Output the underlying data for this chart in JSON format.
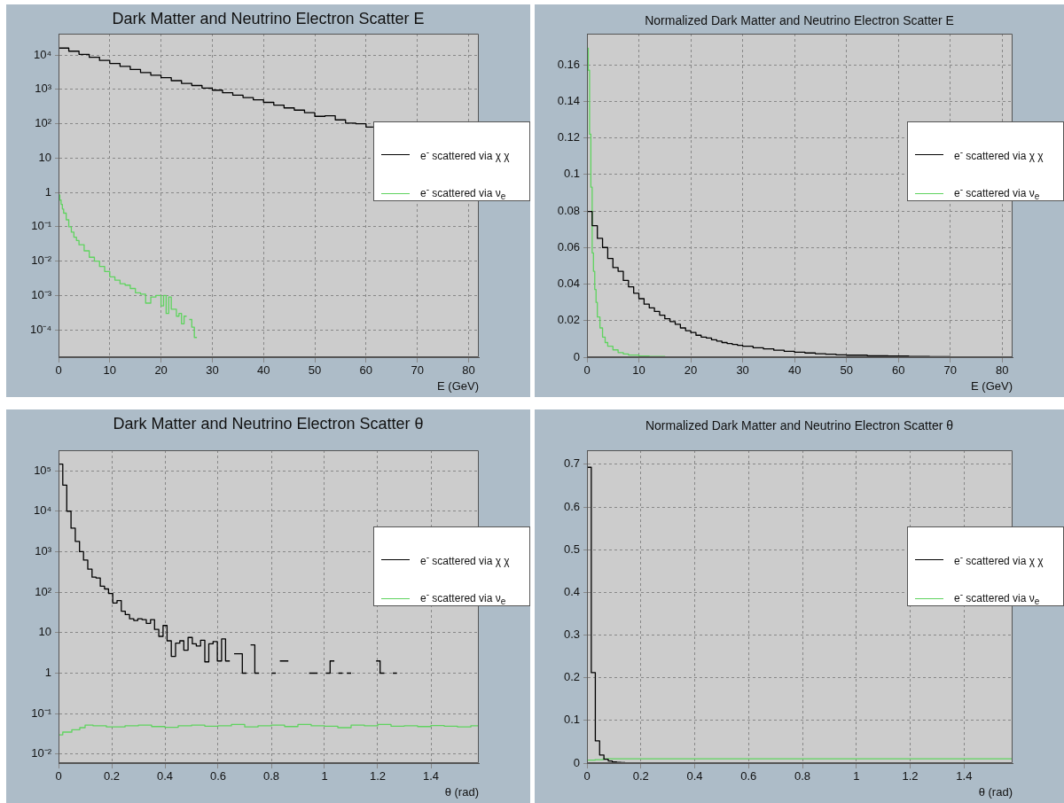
{
  "chart_data": [
    {
      "type": "step",
      "title": "Dark Matter and Neutrino Electron Scatter E",
      "xlabel": "E (GeV)",
      "log": "y",
      "grid": true,
      "legend": "right",
      "marker": "none",
      "xlim": [
        0,
        82
      ],
      "xticks": [
        0,
        10,
        20,
        30,
        40,
        50,
        60,
        70,
        80
      ],
      "ylim": [
        1.6e-05,
        42000
      ],
      "yticks": [
        {
          "value": 0.0001,
          "label": "10⁻⁴"
        },
        {
          "value": 0.001,
          "label": "10⁻³"
        },
        {
          "value": 0.01,
          "label": "10⁻²"
        },
        {
          "value": 0.1,
          "label": "10⁻¹"
        },
        1,
        10,
        {
          "value": 100,
          "label": "10²"
        },
        {
          "value": 1000,
          "label": "10³"
        },
        {
          "value": 10000,
          "label": "10⁴"
        }
      ],
      "series": [
        {
          "name": "e$^{-}$ scattered via χ χ",
          "color": "#000000",
          "x": [
            0,
            2,
            4,
            6,
            8,
            10,
            12,
            14,
            16,
            18,
            20,
            22,
            24,
            26,
            28,
            30,
            32,
            34,
            36,
            38,
            40,
            42,
            44,
            46,
            48,
            50,
            52,
            54,
            56,
            58,
            60,
            61.4
          ],
          "values": [
            16000,
            13000,
            10500,
            8600,
            7000,
            5700,
            4700,
            3800,
            3100,
            2600,
            2200,
            1800,
            1500,
            1300,
            1100,
            950,
            800,
            680,
            580,
            500,
            420,
            350,
            290,
            250,
            210,
            165,
            170,
            130,
            105,
            100,
            80,
            80
          ]
        },
        {
          "name": "e$^{-}$ scattered via ν$_{e}$",
          "color": "#5fd35f",
          "x": [
            0,
            0.25,
            0.5,
            0.75,
            1,
            1.5,
            2,
            2.5,
            3,
            3.5,
            4,
            5,
            6,
            7,
            8,
            9,
            10,
            11,
            12,
            13,
            14,
            15,
            16,
            17,
            18,
            19,
            20,
            20.5,
            21,
            21.5,
            22,
            23,
            23.5,
            24,
            24.5,
            25,
            25.2,
            25.5,
            26,
            26.5,
            27
          ],
          "values": [
            0.85,
            0.6,
            0.45,
            0.33,
            0.25,
            0.16,
            0.1,
            0.07,
            0.05,
            0.04,
            0.03,
            0.02,
            0.013,
            0.01,
            0.007,
            0.005,
            0.0035,
            0.0028,
            0.0022,
            0.002,
            0.0016,
            0.0012,
            0.0011,
            0.0006,
            0.0009,
            0.001,
            0.0005,
            0.001,
            0.0003,
            0.0009,
            0.0004,
            0.00025,
            0.0003,
            0.00015,
            0.00025,
            0.00025,
            null,
            0.0002,
            0.00012,
            6e-05,
            6e-05
          ]
        }
      ]
    },
    {
      "type": "step",
      "title": "Normalized Dark Matter and Neutrino Electron Scatter E",
      "xlabel": "E (GeV)",
      "grid": true,
      "legend": "right",
      "marker": "none",
      "xlim": [
        0,
        82
      ],
      "xticks": [
        0,
        10,
        20,
        30,
        40,
        50,
        60,
        70,
        80
      ],
      "ylim": [
        0,
        0.177
      ],
      "yticks": [
        0,
        0.02,
        0.04,
        0.06,
        0.08,
        0.1,
        0.12,
        0.14,
        0.16
      ],
      "series": [
        {
          "name": "e$^{-}$ scattered via χ χ",
          "color": "#000000",
          "x": [
            0,
            1,
            2,
            3,
            4,
            5,
            6,
            7,
            8,
            9,
            10,
            11,
            12,
            13,
            14,
            15,
            16,
            17,
            18,
            19,
            20,
            21,
            22,
            23,
            24,
            25,
            26,
            27,
            28,
            29,
            30,
            32,
            34,
            36,
            38,
            40,
            42,
            44,
            46,
            48,
            50,
            54,
            58,
            62,
            66,
            70,
            76,
            82
          ],
          "values": [
            0.0797,
            0.072,
            0.065,
            0.06,
            0.054,
            0.049,
            0.047,
            0.042,
            0.0385,
            0.035,
            0.032,
            0.029,
            0.027,
            0.025,
            0.023,
            0.021,
            0.0195,
            0.018,
            0.016,
            0.0145,
            0.0135,
            0.012,
            0.011,
            0.0105,
            0.0095,
            0.0088,
            0.008,
            0.0075,
            0.007,
            0.0065,
            0.006,
            0.0052,
            0.0045,
            0.0038,
            0.0032,
            0.0027,
            0.0023,
            0.0019,
            0.0016,
            0.0013,
            0.0011,
            0.0008,
            0.0006,
            0.0004,
            0.0003,
            0.0002,
            0.0001,
            0.0001
          ]
        },
        {
          "name": "e$^{-}$ scattered via ν$_{e}$",
          "color": "#5fd35f",
          "x": [
            0,
            0.25,
            0.5,
            0.75,
            1,
            1.25,
            1.5,
            1.75,
            2,
            2.5,
            3,
            3.5,
            4,
            5,
            6,
            7,
            8,
            10,
            12,
            15
          ],
          "values": [
            0.169,
            0.157,
            0.122,
            0.093,
            0.057,
            0.047,
            0.037,
            0.03,
            0.022,
            0.016,
            0.011,
            0.008,
            0.006,
            0.004,
            0.0025,
            0.0018,
            0.0012,
            0.0007,
            0.0004,
            0.0002
          ]
        }
      ]
    },
    {
      "type": "step",
      "title": "Dark Matter and Neutrino Electron Scatter θ",
      "xlabel": "θ (rad)",
      "log": "y",
      "grid": true,
      "legend": "right",
      "marker": "none",
      "xlim": [
        0,
        1.58
      ],
      "xticks": [
        0,
        0.2,
        0.4,
        0.6,
        0.8,
        1,
        1.2,
        1.4
      ],
      "ylim": [
        0.006,
        320000
      ],
      "yticks": [
        {
          "value": 0.01,
          "label": "10⁻²"
        },
        {
          "value": 0.1,
          "label": "10⁻¹"
        },
        1,
        10,
        {
          "value": 100,
          "label": "10²"
        },
        {
          "value": 1000,
          "label": "10³"
        },
        {
          "value": 10000,
          "label": "10⁴"
        },
        {
          "value": 100000,
          "label": "10⁵"
        }
      ],
      "series": [
        {
          "name": "e$^{-}$ scattered via χ χ",
          "color": "#000000",
          "x": [
            0,
            0.016,
            0.031,
            0.047,
            0.063,
            0.079,
            0.094,
            0.11,
            0.126,
            0.141,
            0.157,
            0.173,
            0.188,
            0.204,
            0.22,
            0.236,
            0.251,
            0.267,
            0.283,
            0.298,
            0.314,
            0.33,
            0.346,
            0.361,
            0.377,
            0.393,
            0.408,
            0.424,
            0.44,
            0.456,
            0.471,
            0.487,
            0.503,
            0.518,
            0.534,
            0.55,
            0.565,
            0.581,
            0.597,
            0.613,
            0.628,
            0.644,
            0.652,
            0.66,
            0.691,
            0.707,
            0.714,
            0.722,
            0.738,
            0.754,
            0.77,
            0.801,
            0.817,
            0.824,
            0.832,
            0.864,
            0.9,
            0.942,
            0.974,
            0.99,
            1.005,
            1.021,
            1.037,
            1.045,
            1.052,
            1.068,
            1.076,
            1.084,
            1.1,
            1.15,
            1.194,
            1.209,
            1.225,
            1.24,
            1.257,
            1.272
          ],
          "values": [
            145000,
            44000,
            10000,
            3800,
            1800,
            1000,
            620,
            370,
            235,
            225,
            140,
            120,
            93,
            54,
            62,
            34,
            28,
            22,
            20,
            22,
            21,
            17,
            21,
            12,
            8.1,
            15,
            6.3,
            2.6,
            5.5,
            6.3,
            3.7,
            7.6,
            5.3,
            4.7,
            6.5,
            1.9,
            5.3,
            6,
            2,
            7,
            2,
            2,
            null,
            3,
            1,
            1,
            null,
            5,
            1,
            1,
            null,
            1,
            1,
            null,
            2,
            2,
            null,
            1,
            1,
            null,
            1,
            2,
            2,
            null,
            1,
            1,
            null,
            1,
            1,
            null,
            2,
            1,
            1,
            null,
            1,
            1
          ]
        },
        {
          "name": "e$^{-}$ scattered via ν$_{e}$",
          "color": "#5fd35f",
          "x": [
            0,
            0.016,
            0.05,
            0.08,
            0.1,
            0.13,
            0.18,
            0.25,
            0.3,
            0.35,
            0.4,
            0.45,
            0.5,
            0.55,
            0.6,
            0.65,
            0.7,
            0.75,
            0.8,
            0.85,
            0.9,
            0.95,
            1,
            1.05,
            1.1,
            1.15,
            1.2,
            1.25,
            1.3,
            1.35,
            1.4,
            1.45,
            1.5,
            1.55,
            1.58
          ],
          "values": [
            0.03,
            0.035,
            0.04,
            0.045,
            0.052,
            0.05,
            0.047,
            0.05,
            0.052,
            0.048,
            0.046,
            0.05,
            0.052,
            0.049,
            0.05,
            0.054,
            0.047,
            0.05,
            0.052,
            0.048,
            0.054,
            0.05,
            0.049,
            0.045,
            0.052,
            0.05,
            0.054,
            0.049,
            0.05,
            0.048,
            0.051,
            0.049,
            0.047,
            0.05,
            0.05
          ]
        }
      ]
    },
    {
      "type": "step",
      "title": "Normalized Dark Matter and Neutrino Electron Scatter θ",
      "xlabel": "θ (rad)",
      "grid": true,
      "legend": "right",
      "marker": "none",
      "xlim": [
        0,
        1.58
      ],
      "xticks": [
        0,
        0.2,
        0.4,
        0.6,
        0.8,
        1,
        1.2,
        1.4
      ],
      "ylim": [
        0,
        0.733
      ],
      "yticks": [
        0,
        0.1,
        0.2,
        0.3,
        0.4,
        0.5,
        0.6,
        0.7
      ],
      "series": [
        {
          "name": "e$^{-}$ scattered via χ χ",
          "color": "#000000",
          "x": [
            0,
            0.016,
            0.031,
            0.047,
            0.063,
            0.079,
            0.094,
            0.11,
            0.126,
            0.141,
            0.157
          ],
          "values": [
            0.693,
            0.212,
            0.052,
            0.019,
            0.009,
            0.005,
            0.003,
            0.002,
            0.001,
            0,
            0
          ]
        },
        {
          "name": "e$^{-}$ scattered via ν$_{e}$",
          "color": "#5fd35f",
          "x": [
            0,
            0.03,
            0.06,
            0.2,
            0.4,
            0.6,
            0.8,
            1,
            1.2,
            1.4,
            1.58
          ],
          "values": [
            0.007,
            0.008,
            0.01,
            0.01,
            0.01,
            0.01,
            0.01,
            0.01,
            0.01,
            0.01,
            0.01
          ]
        }
      ]
    }
  ]
}
